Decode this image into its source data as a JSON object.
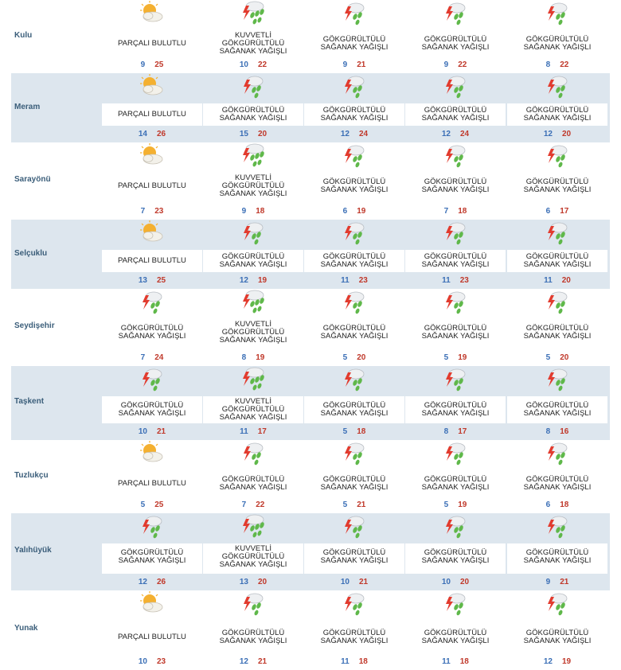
{
  "colors": {
    "row_shade": "#dde6ee",
    "city_label": "#3b5e7a",
    "min_temp": "#3b6fb6",
    "max_temp": "#c0392b"
  },
  "rows": [
    {
      "city": "Kulu",
      "days": [
        {
          "icon": "partly-cloudy-icon",
          "condition": "PARÇALI BULUTLU",
          "min": "9",
          "max": "25"
        },
        {
          "icon": "heavy-thunderstorm-rain-icon",
          "condition": "KUVVETLİ\nGÖKGÜRÜLTÜLÜ\nSAĞANAK YAĞIŞLI",
          "min": "10",
          "max": "22"
        },
        {
          "icon": "thunderstorm-rain-icon",
          "condition": "GÖKGÜRÜLTÜLÜ\nSAĞANAK YAĞIŞLI",
          "min": "9",
          "max": "21"
        },
        {
          "icon": "thunderstorm-rain-icon",
          "condition": "GÖKGÜRÜLTÜLÜ\nSAĞANAK YAĞIŞLI",
          "min": "9",
          "max": "22"
        },
        {
          "icon": "thunderstorm-rain-icon",
          "condition": "GÖKGÜRÜLTÜLÜ\nSAĞANAK YAĞIŞLI",
          "min": "8",
          "max": "22"
        }
      ]
    },
    {
      "city": "Meram",
      "days": [
        {
          "icon": "partly-cloudy-icon",
          "condition": "PARÇALI BULUTLU",
          "min": "14",
          "max": "26"
        },
        {
          "icon": "thunderstorm-rain-icon",
          "condition": "GÖKGÜRÜLTÜLÜ\nSAĞANAK YAĞIŞLI",
          "min": "15",
          "max": "20"
        },
        {
          "icon": "thunderstorm-rain-icon",
          "condition": "GÖKGÜRÜLTÜLÜ\nSAĞANAK YAĞIŞLI",
          "min": "12",
          "max": "24"
        },
        {
          "icon": "thunderstorm-rain-icon",
          "condition": "GÖKGÜRÜLTÜLÜ\nSAĞANAK YAĞIŞLI",
          "min": "12",
          "max": "24"
        },
        {
          "icon": "thunderstorm-rain-icon",
          "condition": "GÖKGÜRÜLTÜLÜ\nSAĞANAK YAĞIŞLI",
          "min": "12",
          "max": "20"
        }
      ]
    },
    {
      "city": "Sarayönü",
      "days": [
        {
          "icon": "partly-cloudy-icon",
          "condition": "PARÇALI BULUTLU",
          "min": "7",
          "max": "23"
        },
        {
          "icon": "heavy-thunderstorm-rain-icon",
          "condition": "KUVVETLİ\nGÖKGÜRÜLTÜLÜ\nSAĞANAK YAĞIŞLI",
          "min": "9",
          "max": "18"
        },
        {
          "icon": "thunderstorm-rain-icon",
          "condition": "GÖKGÜRÜLTÜLÜ\nSAĞANAK YAĞIŞLI",
          "min": "6",
          "max": "19"
        },
        {
          "icon": "thunderstorm-rain-icon",
          "condition": "GÖKGÜRÜLTÜLÜ\nSAĞANAK YAĞIŞLI",
          "min": "7",
          "max": "18"
        },
        {
          "icon": "thunderstorm-rain-icon",
          "condition": "GÖKGÜRÜLTÜLÜ\nSAĞANAK YAĞIŞLI",
          "min": "6",
          "max": "17"
        }
      ]
    },
    {
      "city": "Selçuklu",
      "days": [
        {
          "icon": "partly-cloudy-icon",
          "condition": "PARÇALI BULUTLU",
          "min": "13",
          "max": "25"
        },
        {
          "icon": "thunderstorm-rain-icon",
          "condition": "GÖKGÜRÜLTÜLÜ\nSAĞANAK YAĞIŞLI",
          "min": "12",
          "max": "19"
        },
        {
          "icon": "thunderstorm-rain-icon",
          "condition": "GÖKGÜRÜLTÜLÜ\nSAĞANAK YAĞIŞLI",
          "min": "11",
          "max": "23"
        },
        {
          "icon": "thunderstorm-rain-icon",
          "condition": "GÖKGÜRÜLTÜLÜ\nSAĞANAK YAĞIŞLI",
          "min": "11",
          "max": "23"
        },
        {
          "icon": "thunderstorm-rain-icon",
          "condition": "GÖKGÜRÜLTÜLÜ\nSAĞANAK YAĞIŞLI",
          "min": "11",
          "max": "20"
        }
      ]
    },
    {
      "city": "Seydişehir",
      "days": [
        {
          "icon": "thunderstorm-rain-icon",
          "condition": "GÖKGÜRÜLTÜLÜ\nSAĞANAK YAĞIŞLI",
          "min": "7",
          "max": "24"
        },
        {
          "icon": "heavy-thunderstorm-rain-icon",
          "condition": "KUVVETLİ\nGÖKGÜRÜLTÜLÜ\nSAĞANAK YAĞIŞLI",
          "min": "8",
          "max": "19"
        },
        {
          "icon": "thunderstorm-rain-icon",
          "condition": "GÖKGÜRÜLTÜLÜ\nSAĞANAK YAĞIŞLI",
          "min": "5",
          "max": "20"
        },
        {
          "icon": "thunderstorm-rain-icon",
          "condition": "GÖKGÜRÜLTÜLÜ\nSAĞANAK YAĞIŞLI",
          "min": "5",
          "max": "19"
        },
        {
          "icon": "thunderstorm-rain-icon",
          "condition": "GÖKGÜRÜLTÜLÜ\nSAĞANAK YAĞIŞLI",
          "min": "5",
          "max": "20"
        }
      ]
    },
    {
      "city": "Taşkent",
      "days": [
        {
          "icon": "thunderstorm-rain-icon",
          "condition": "GÖKGÜRÜLTÜLÜ\nSAĞANAK YAĞIŞLI",
          "min": "10",
          "max": "21"
        },
        {
          "icon": "heavy-thunderstorm-rain-icon",
          "condition": "KUVVETLİ\nGÖKGÜRÜLTÜLÜ\nSAĞANAK YAĞIŞLI",
          "min": "11",
          "max": "17"
        },
        {
          "icon": "thunderstorm-rain-icon",
          "condition": "GÖKGÜRÜLTÜLÜ\nSAĞANAK YAĞIŞLI",
          "min": "5",
          "max": "18"
        },
        {
          "icon": "thunderstorm-rain-icon",
          "condition": "GÖKGÜRÜLTÜLÜ\nSAĞANAK YAĞIŞLI",
          "min": "8",
          "max": "17"
        },
        {
          "icon": "thunderstorm-rain-icon",
          "condition": "GÖKGÜRÜLTÜLÜ\nSAĞANAK YAĞIŞLI",
          "min": "8",
          "max": "16"
        }
      ]
    },
    {
      "city": "Tuzlukçu",
      "days": [
        {
          "icon": "partly-cloudy-icon",
          "condition": "PARÇALI BULUTLU",
          "min": "5",
          "max": "25"
        },
        {
          "icon": "thunderstorm-rain-icon",
          "condition": "GÖKGÜRÜLTÜLÜ\nSAĞANAK YAĞIŞLI",
          "min": "7",
          "max": "22"
        },
        {
          "icon": "thunderstorm-rain-icon",
          "condition": "GÖKGÜRÜLTÜLÜ\nSAĞANAK YAĞIŞLI",
          "min": "5",
          "max": "21"
        },
        {
          "icon": "thunderstorm-rain-icon",
          "condition": "GÖKGÜRÜLTÜLÜ\nSAĞANAK YAĞIŞLI",
          "min": "5",
          "max": "19"
        },
        {
          "icon": "thunderstorm-rain-icon",
          "condition": "GÖKGÜRÜLTÜLÜ\nSAĞANAK YAĞIŞLI",
          "min": "6",
          "max": "18"
        }
      ]
    },
    {
      "city": "Yalıhüyük",
      "days": [
        {
          "icon": "thunderstorm-rain-icon",
          "condition": "GÖKGÜRÜLTÜLÜ\nSAĞANAK YAĞIŞLI",
          "min": "12",
          "max": "26"
        },
        {
          "icon": "heavy-thunderstorm-rain-icon",
          "condition": "KUVVETLİ\nGÖKGÜRÜLTÜLÜ\nSAĞANAK YAĞIŞLI",
          "min": "13",
          "max": "20"
        },
        {
          "icon": "thunderstorm-rain-icon",
          "condition": "GÖKGÜRÜLTÜLÜ\nSAĞANAK YAĞIŞLI",
          "min": "10",
          "max": "21"
        },
        {
          "icon": "thunderstorm-rain-icon",
          "condition": "GÖKGÜRÜLTÜLÜ\nSAĞANAK YAĞIŞLI",
          "min": "10",
          "max": "20"
        },
        {
          "icon": "thunderstorm-rain-icon",
          "condition": "GÖKGÜRÜLTÜLÜ\nSAĞANAK YAĞIŞLI",
          "min": "9",
          "max": "21"
        }
      ]
    },
    {
      "city": "Yunak",
      "days": [
        {
          "icon": "partly-cloudy-icon",
          "condition": "PARÇALI BULUTLU",
          "min": "10",
          "max": "23"
        },
        {
          "icon": "thunderstorm-rain-icon",
          "condition": "GÖKGÜRÜLTÜLÜ\nSAĞANAK YAĞIŞLI",
          "min": "12",
          "max": "21"
        },
        {
          "icon": "thunderstorm-rain-icon",
          "condition": "GÖKGÜRÜLTÜLÜ\nSAĞANAK YAĞIŞLI",
          "min": "11",
          "max": "18"
        },
        {
          "icon": "thunderstorm-rain-icon",
          "condition": "GÖKGÜRÜLTÜLÜ\nSAĞANAK YAĞIŞLI",
          "min": "11",
          "max": "18"
        },
        {
          "icon": "thunderstorm-rain-icon",
          "condition": "GÖKGÜRÜLTÜLÜ\nSAĞANAK YAĞIŞLI",
          "min": "12",
          "max": "19"
        }
      ]
    }
  ]
}
